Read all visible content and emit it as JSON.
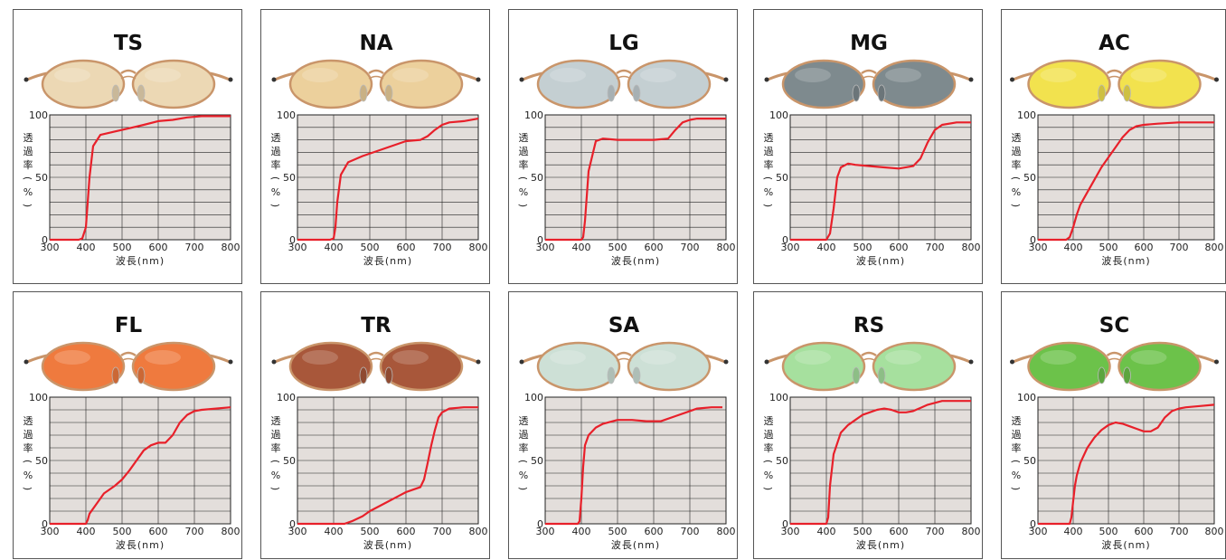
{
  "axis": {
    "ylabel_chars": [
      "透",
      "過",
      "率",
      "(",
      "%",
      ")"
    ],
    "xlabel": "波長(nm)",
    "x_ticks": [
      300,
      400,
      500,
      600,
      700,
      800
    ],
    "y_ticks": [
      0,
      50,
      100
    ],
    "xlim": [
      300,
      800
    ],
    "ylim": [
      0,
      100
    ]
  },
  "colors": {
    "curve": "#e8202a",
    "plot_bg": "#e3dedb",
    "frame_gold": "#c9956a"
  },
  "chart_data": [
    {
      "type": "line",
      "title": "TS",
      "lens_color": "#ecd8b4",
      "x": [
        300,
        380,
        390,
        400,
        410,
        420,
        440,
        470,
        500,
        530,
        560,
        600,
        640,
        680,
        720,
        760,
        800
      ],
      "y": [
        0,
        0,
        1,
        10,
        50,
        75,
        84,
        86,
        88,
        90,
        92,
        95,
        96,
        98,
        99,
        99,
        99
      ]
    },
    {
      "type": "line",
      "title": "NA",
      "lens_color": "#ecd09c",
      "x": [
        300,
        390,
        400,
        405,
        410,
        420,
        440,
        480,
        520,
        560,
        600,
        640,
        660,
        680,
        700,
        720,
        760,
        800
      ],
      "y": [
        0,
        0,
        1,
        10,
        30,
        52,
        62,
        67,
        71,
        75,
        79,
        80,
        83,
        88,
        92,
        94,
        95,
        97
      ]
    },
    {
      "type": "line",
      "title": "LG",
      "lens_color": "#c4cfd2",
      "x": [
        300,
        400,
        405,
        410,
        420,
        440,
        460,
        500,
        550,
        600,
        640,
        660,
        680,
        700,
        720,
        760,
        800
      ],
      "y": [
        0,
        0,
        2,
        15,
        55,
        79,
        81,
        80,
        80,
        80,
        81,
        88,
        94,
        96,
        97,
        97,
        97
      ]
    },
    {
      "type": "line",
      "title": "MG",
      "lens_color": "#7e8a8e",
      "x": [
        300,
        400,
        410,
        420,
        430,
        440,
        460,
        480,
        520,
        560,
        600,
        640,
        660,
        680,
        700,
        720,
        760,
        800
      ],
      "y": [
        0,
        0,
        5,
        25,
        50,
        58,
        61,
        60,
        59,
        58,
        57,
        59,
        65,
        78,
        88,
        92,
        94,
        94
      ]
    },
    {
      "type": "line",
      "title": "AC",
      "lens_color": "#f2e24e",
      "x": [
        300,
        380,
        390,
        400,
        410,
        420,
        440,
        460,
        480,
        500,
        520,
        540,
        560,
        580,
        600,
        640,
        700,
        760,
        800
      ],
      "y": [
        0,
        0,
        2,
        10,
        20,
        28,
        38,
        48,
        58,
        66,
        74,
        82,
        88,
        91,
        92,
        93,
        94,
        94,
        94
      ]
    },
    {
      "type": "line",
      "title": "FL",
      "lens_color": "#ef7a3e",
      "x": [
        300,
        400,
        405,
        410,
        430,
        450,
        480,
        500,
        520,
        540,
        560,
        580,
        600,
        620,
        640,
        660,
        680,
        700,
        720,
        760,
        800
      ],
      "y": [
        0,
        0,
        3,
        8,
        16,
        24,
        30,
        35,
        42,
        50,
        58,
        62,
        64,
        64,
        70,
        80,
        86,
        89,
        90,
        91,
        92
      ]
    },
    {
      "type": "line",
      "title": "TR",
      "lens_color": "#a8573a",
      "x": [
        300,
        400,
        430,
        450,
        480,
        500,
        540,
        580,
        600,
        620,
        640,
        650,
        660,
        670,
        680,
        690,
        700,
        720,
        760,
        800
      ],
      "y": [
        0,
        0,
        0,
        2,
        6,
        10,
        16,
        22,
        25,
        27,
        29,
        35,
        48,
        62,
        74,
        84,
        88,
        91,
        92,
        92
      ]
    },
    {
      "type": "line",
      "title": "SA",
      "lens_color": "#cde0d6",
      "x": [
        300,
        390,
        395,
        400,
        405,
        410,
        420,
        440,
        460,
        500,
        540,
        580,
        620,
        660,
        700,
        720,
        760,
        790
      ],
      "y": [
        0,
        0,
        2,
        20,
        45,
        62,
        70,
        76,
        79,
        82,
        82,
        81,
        81,
        85,
        89,
        91,
        92,
        92
      ]
    },
    {
      "type": "line",
      "title": "RS",
      "lens_color": "#a6e09e",
      "x": [
        300,
        400,
        405,
        410,
        420,
        440,
        460,
        480,
        500,
        540,
        560,
        580,
        600,
        620,
        640,
        680,
        720,
        760,
        800
      ],
      "y": [
        0,
        0,
        5,
        30,
        55,
        72,
        78,
        82,
        86,
        90,
        91,
        90,
        88,
        88,
        89,
        94,
        97,
        97,
        97
      ]
    },
    {
      "type": "line",
      "title": "SC",
      "lens_color": "#6cc24a",
      "x": [
        300,
        390,
        395,
        400,
        405,
        410,
        420,
        440,
        460,
        480,
        500,
        520,
        540,
        560,
        580,
        600,
        620,
        640,
        660,
        680,
        700,
        720,
        760,
        800
      ],
      "y": [
        0,
        0,
        5,
        18,
        30,
        38,
        48,
        60,
        68,
        74,
        78,
        80,
        79,
        77,
        75,
        73,
        73,
        76,
        84,
        89,
        91,
        92,
        93,
        94
      ]
    }
  ]
}
